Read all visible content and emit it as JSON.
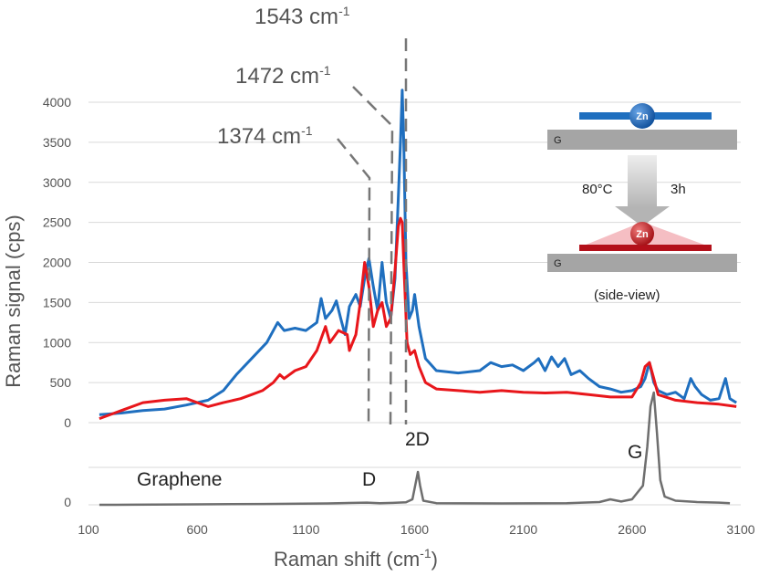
{
  "chart_data": {
    "type": "line",
    "xlabel": "Raman shift (cm",
    "xlabel_sup": "-1",
    "xlabel_end": ")",
    "ylabel": "Raman signal  (cps)",
    "xlim": [
      100,
      3100
    ],
    "ylim": [
      0,
      4000
    ],
    "x_ticks": [
      "100",
      "600",
      "1100",
      "1600",
      "2100",
      "2600",
      "3100"
    ],
    "y_ticks": [
      "0",
      "500",
      "1000",
      "1500",
      "2000",
      "2500",
      "3000",
      "3500",
      "4000"
    ],
    "lower_panel_y_tick": "0",
    "colors": {
      "blue": "#1f6fbf",
      "red": "#e8161b",
      "gray": "#6e6e6e"
    },
    "series": [
      {
        "color": "blue",
        "x": [
          150,
          250,
          350,
          450,
          550,
          650,
          720,
          780,
          850,
          920,
          970,
          1000,
          1050,
          1100,
          1150,
          1170,
          1190,
          1220,
          1240,
          1260,
          1280,
          1300,
          1330,
          1350,
          1370,
          1390,
          1410,
          1430,
          1450,
          1470,
          1490,
          1510,
          1525,
          1535,
          1543,
          1550,
          1560,
          1575,
          1590,
          1600,
          1620,
          1650,
          1700,
          1800,
          1900,
          1950,
          2000,
          2050,
          2100,
          2150,
          2170,
          2200,
          2230,
          2260,
          2290,
          2320,
          2360,
          2400,
          2450,
          2500,
          2550,
          2600,
          2640,
          2660,
          2680,
          2700,
          2720,
          2760,
          2800,
          2840,
          2870,
          2890,
          2920,
          2960,
          3000,
          3030,
          3050,
          3080
        ],
        "y": [
          100,
          120,
          150,
          170,
          220,
          280,
          400,
          600,
          800,
          1000,
          1250,
          1150,
          1180,
          1150,
          1250,
          1550,
          1300,
          1400,
          1520,
          1300,
          1100,
          1450,
          1600,
          1450,
          1800,
          2050,
          1700,
          1400,
          2000,
          1500,
          1300,
          1800,
          2800,
          3500,
          4150,
          3500,
          2000,
          1300,
          1400,
          1600,
          1200,
          800,
          650,
          620,
          650,
          750,
          700,
          720,
          650,
          750,
          800,
          650,
          820,
          700,
          800,
          600,
          650,
          550,
          450,
          420,
          380,
          400,
          450,
          550,
          750,
          500,
          400,
          350,
          380,
          300,
          550,
          450,
          350,
          280,
          300,
          550,
          300,
          250
        ]
      },
      {
        "color": "red",
        "x": [
          150,
          250,
          350,
          450,
          550,
          650,
          720,
          800,
          850,
          900,
          950,
          980,
          1000,
          1050,
          1100,
          1150,
          1190,
          1210,
          1250,
          1290,
          1300,
          1330,
          1350,
          1370,
          1390,
          1410,
          1430,
          1450,
          1470,
          1490,
          1510,
          1525,
          1535,
          1543,
          1550,
          1565,
          1580,
          1600,
          1620,
          1650,
          1700,
          1800,
          1900,
          2000,
          2100,
          2200,
          2300,
          2400,
          2500,
          2600,
          2640,
          2660,
          2680,
          2700,
          2720,
          2800,
          2900,
          3000,
          3080
        ],
        "y": [
          50,
          150,
          250,
          280,
          300,
          200,
          250,
          300,
          350,
          400,
          500,
          600,
          550,
          650,
          700,
          900,
          1200,
          1000,
          1150,
          1100,
          900,
          1100,
          1500,
          2000,
          1700,
          1200,
          1400,
          1500,
          1200,
          1300,
          1900,
          2450,
          2550,
          2500,
          2000,
          1000,
          850,
          900,
          700,
          500,
          420,
          400,
          380,
          400,
          380,
          370,
          380,
          350,
          320,
          320,
          500,
          700,
          750,
          550,
          350,
          280,
          250,
          230,
          200
        ]
      },
      {
        "color": "gray",
        "panel": "lower",
        "x": [
          150,
          300,
          600,
          900,
          1200,
          1380,
          1440,
          1500,
          1560,
          1590,
          1605,
          1615,
          1625,
          1640,
          1700,
          2000,
          2300,
          2450,
          2500,
          2550,
          2600,
          2650,
          2670,
          2685,
          2700,
          2715,
          2730,
          2750,
          2800,
          2900,
          3000,
          3050
        ],
        "y": [
          0,
          5,
          15,
          30,
          50,
          80,
          60,
          70,
          90,
          200,
          800,
          1200,
          700,
          150,
          60,
          50,
          60,
          100,
          200,
          120,
          200,
          700,
          2100,
          3600,
          4100,
          2600,
          900,
          300,
          150,
          100,
          80,
          60
        ]
      }
    ],
    "annotations": {
      "peak_1543": "1543 cm",
      "peak_1472": "1472 cm",
      "peak_1374": "1374 cm",
      "peak_sup": "-1",
      "label_graphene": "Graphene",
      "label_d": "D",
      "label_2d": "2D",
      "label_g": "G"
    },
    "inset": {
      "atom_top": "Zn",
      "atom_bottom": "Zn",
      "substrate_top": "G",
      "substrate_bottom": "G",
      "temperature": "80°C",
      "time": "3h",
      "caption": "(side-view)"
    }
  }
}
